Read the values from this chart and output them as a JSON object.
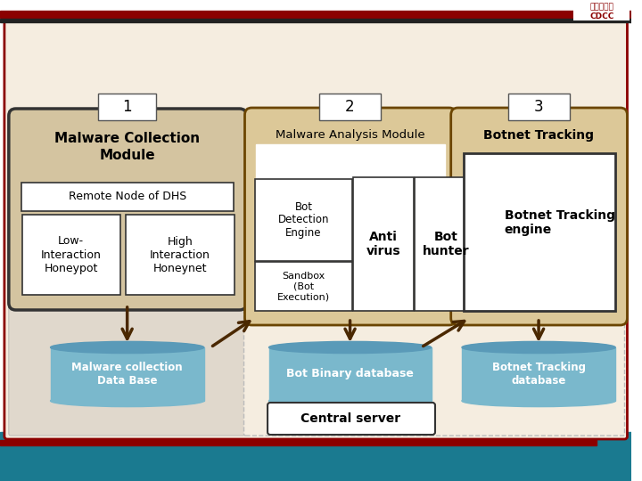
{
  "bg_white": "#ffffff",
  "bg_main": "#f5ede0",
  "bg_left_panel": "#e0d8cc",
  "bg_mid_panel": "#e8d8b0",
  "bg_right_panel": "#e8d8b0",
  "bg_module1": "#d4c4a0",
  "bg_module2": "#dcc898",
  "bg_module3": "#dcc898",
  "border_red": "#8b0000",
  "border_dark": "#333333",
  "border_brown": "#6b4500",
  "cylinder_top": "#5a9ab8",
  "cylinder_body": "#7ab8cc",
  "arrow_color": "#4a2800",
  "teal_bg": "#1a7a90",
  "num1": "1",
  "num2": "2",
  "num3": "3",
  "module1_text": "Malware Collection\nModule",
  "module2_text": "Malware Analysis Module",
  "module3_text": "Botnet Tracking",
  "remote_node": "Remote Node of DHS",
  "low_int": "Low-\nInteraction\nHoneypot",
  "high_int": "High\nInteraction\nHoneynet",
  "bot_detect": "Bot\nDetection\nEngine",
  "antivirus": "Anti\nvirus",
  "bot_hunter": "Bot\nhunter",
  "sandbox": "Sandbox\n(Bot\nExecution)",
  "botnet_engine": "Botnet Tracking\nengine",
  "db1": "Malware collection\nData Base",
  "db2": "Bot Binary database",
  "db3": "Botnet Tracking\ndatabase",
  "central": "Central server"
}
